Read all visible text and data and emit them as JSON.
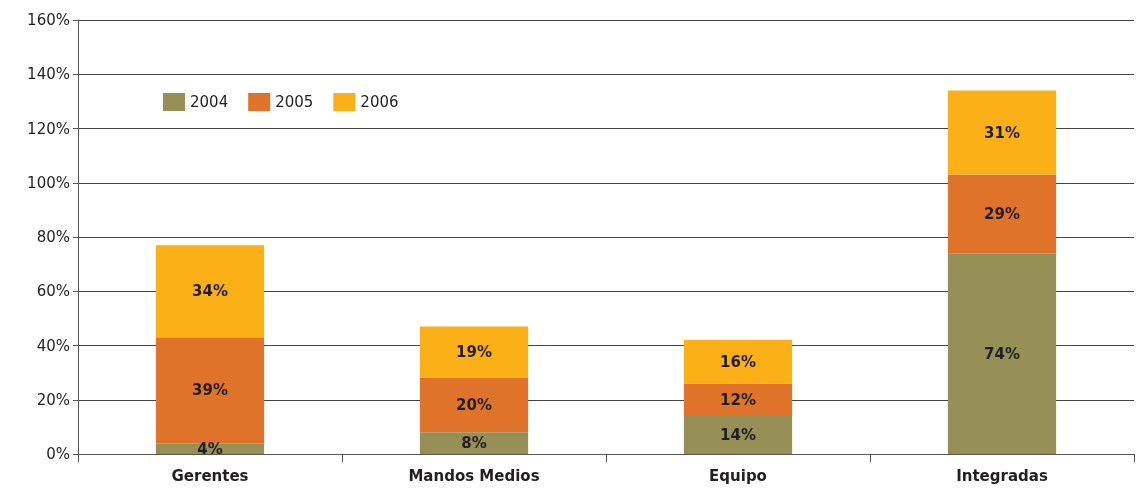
{
  "chart_data": {
    "type": "bar",
    "stacked": true,
    "categories": [
      "Gerentes",
      "Mandos Medios",
      "Equipo",
      "Integradas"
    ],
    "series": [
      {
        "name": "2004",
        "color": "#969056",
        "values": [
          4,
          8,
          14,
          74
        ],
        "value_labels": [
          "4%",
          "8%",
          "14%",
          "74%"
        ]
      },
      {
        "name": "2005",
        "color": "#e0732a",
        "values": [
          39,
          20,
          12,
          29
        ],
        "value_labels": [
          "39%",
          "20%",
          "12%",
          "29%"
        ]
      },
      {
        "name": "2006",
        "color": "#fbb017",
        "values": [
          34,
          19,
          16,
          31
        ],
        "value_labels": [
          "34%",
          "19%",
          "16%",
          "31%"
        ]
      }
    ],
    "ylim": [
      0,
      160
    ],
    "yticks": [
      {
        "value": 0,
        "label": "0%"
      },
      {
        "value": 20,
        "label": "20%"
      },
      {
        "value": 40,
        "label": "40%"
      },
      {
        "value": 60,
        "label": "60%"
      },
      {
        "value": 80,
        "label": "80%"
      },
      {
        "value": 100,
        "label": "100%"
      },
      {
        "value": 120,
        "label": "120%"
      },
      {
        "value": 140,
        "label": "140%"
      },
      {
        "value": 160,
        "label": "160%"
      }
    ],
    "grid": "y",
    "legend": "top left"
  }
}
